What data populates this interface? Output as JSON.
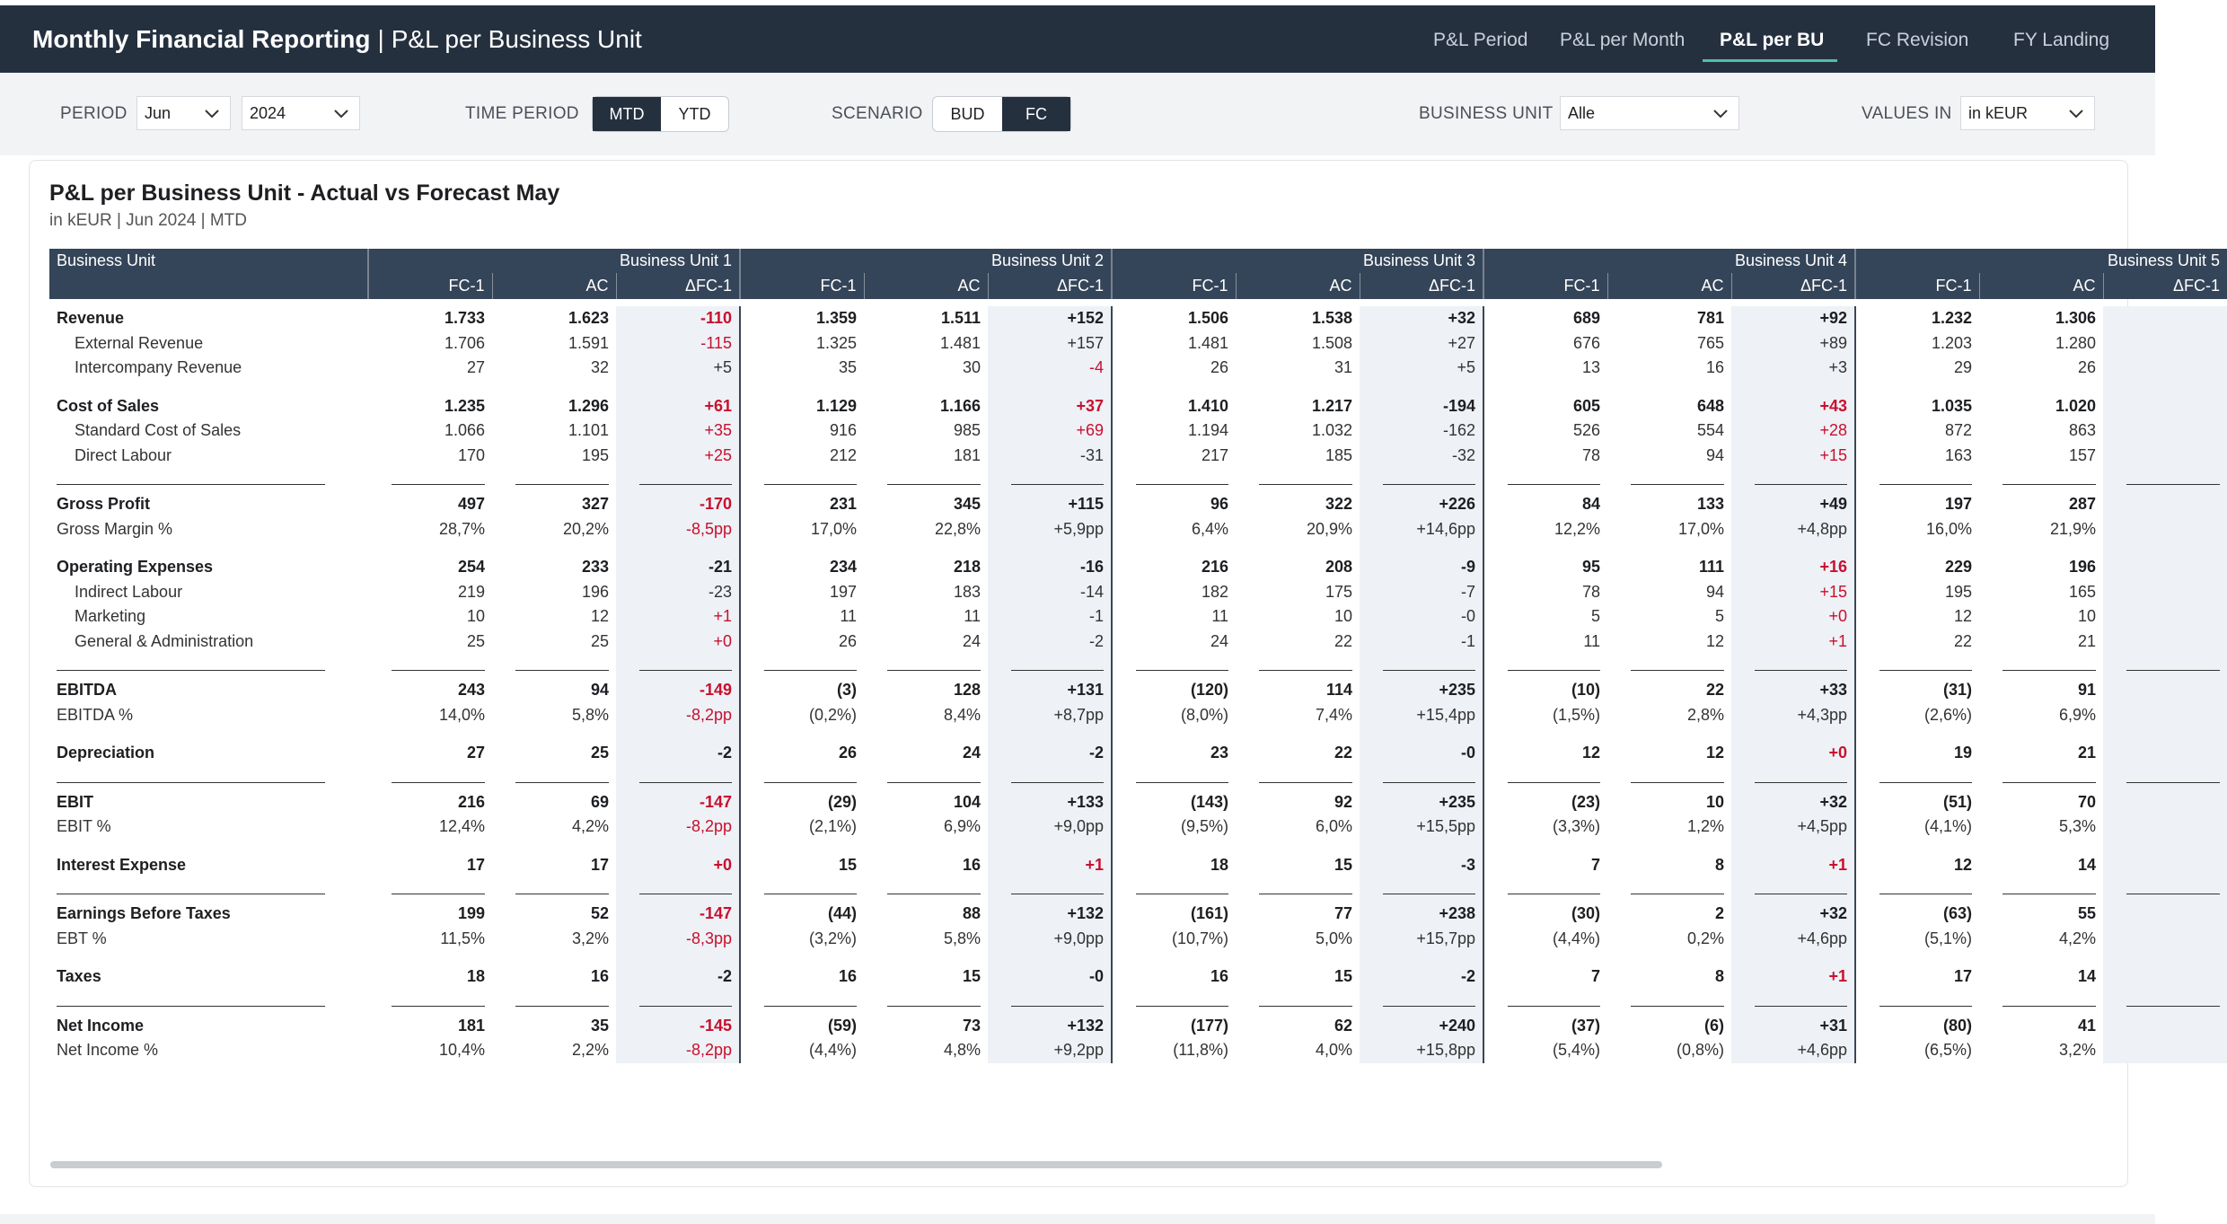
{
  "header": {
    "app_title": "Monthly Financial Reporting",
    "separator": "|",
    "page_title": "P&L per Business Unit",
    "nav": [
      {
        "label": "P&L Period",
        "active": false
      },
      {
        "label": "P&L per Month",
        "active": false
      },
      {
        "label": "P&L per BU",
        "active": true
      },
      {
        "label": "FC Revision",
        "active": false
      },
      {
        "label": "FY Landing",
        "active": false
      }
    ]
  },
  "filters": {
    "period_label": "PERIOD",
    "period_month": "Jun",
    "period_year": "2024",
    "time_period_label": "TIME PERIOD",
    "time_period_options": [
      "MTD",
      "YTD"
    ],
    "time_period_selected": "MTD",
    "scenario_label": "SCENARIO",
    "scenario_options": [
      "BUD",
      "FC"
    ],
    "scenario_selected": "FC",
    "business_unit_label": "BUSINESS UNIT",
    "business_unit_value": "Alle",
    "values_in_label": "VALUES IN",
    "values_in_value": "in kEUR"
  },
  "card": {
    "title": "P&L per Business Unit - Actual vs Forecast May",
    "subtitle": "in kEUR | Jun 2024 | MTD"
  },
  "table": {
    "label_header": "Business Unit",
    "units": [
      "Business Unit 1",
      "Business Unit 2",
      "Business Unit 3",
      "Business Unit 4",
      "Business Unit 5"
    ],
    "subheaders": [
      "FC-1",
      "AC",
      "ΔFC-1"
    ],
    "rows": [
      {
        "label": "Revenue",
        "type": "bold",
        "cells": [
          [
            "1.733",
            "1.623",
            "-110"
          ],
          [
            "1.359",
            "1.511",
            "+152"
          ],
          [
            "1.506",
            "1.538",
            "+32"
          ],
          [
            "689",
            "781",
            "+92"
          ],
          [
            "1.232",
            "1.306",
            ""
          ]
        ],
        "neg": [
          true,
          false,
          false,
          false,
          false
        ]
      },
      {
        "label": "External Revenue",
        "type": "indent",
        "cells": [
          [
            "1.706",
            "1.591",
            "-115"
          ],
          [
            "1.325",
            "1.481",
            "+157"
          ],
          [
            "1.481",
            "1.508",
            "+27"
          ],
          [
            "676",
            "765",
            "+89"
          ],
          [
            "1.203",
            "1.280",
            ""
          ]
        ],
        "neg": [
          true,
          false,
          false,
          false,
          false
        ]
      },
      {
        "label": "Intercompany Revenue",
        "type": "indent",
        "cells": [
          [
            "27",
            "32",
            "+5"
          ],
          [
            "35",
            "30",
            "-4"
          ],
          [
            "26",
            "31",
            "+5"
          ],
          [
            "13",
            "16",
            "+3"
          ],
          [
            "29",
            "26",
            ""
          ]
        ],
        "neg": [
          false,
          true,
          false,
          false,
          false
        ]
      },
      {
        "type": "spacer"
      },
      {
        "label": "Cost of Sales",
        "type": "bold",
        "cells": [
          [
            "1.235",
            "1.296",
            "+61"
          ],
          [
            "1.129",
            "1.166",
            "+37"
          ],
          [
            "1.410",
            "1.217",
            "-194"
          ],
          [
            "605",
            "648",
            "+43"
          ],
          [
            "1.035",
            "1.020",
            ""
          ]
        ],
        "neg": [
          true,
          true,
          false,
          true,
          false
        ]
      },
      {
        "label": "Standard Cost of Sales",
        "type": "indent",
        "cells": [
          [
            "1.066",
            "1.101",
            "+35"
          ],
          [
            "916",
            "985",
            "+69"
          ],
          [
            "1.194",
            "1.032",
            "-162"
          ],
          [
            "526",
            "554",
            "+28"
          ],
          [
            "872",
            "863",
            ""
          ]
        ],
        "neg": [
          true,
          true,
          false,
          true,
          false
        ]
      },
      {
        "label": "Direct Labour",
        "type": "indent",
        "cells": [
          [
            "170",
            "195",
            "+25"
          ],
          [
            "212",
            "181",
            "-31"
          ],
          [
            "217",
            "185",
            "-32"
          ],
          [
            "78",
            "94",
            "+15"
          ],
          [
            "163",
            "157",
            ""
          ]
        ],
        "neg": [
          true,
          false,
          false,
          true,
          false
        ]
      },
      {
        "type": "underline"
      },
      {
        "label": "Gross Profit",
        "type": "bold",
        "cells": [
          [
            "497",
            "327",
            "-170"
          ],
          [
            "231",
            "345",
            "+115"
          ],
          [
            "96",
            "322",
            "+226"
          ],
          [
            "84",
            "133",
            "+49"
          ],
          [
            "197",
            "287",
            ""
          ]
        ],
        "neg": [
          true,
          false,
          false,
          false,
          false
        ]
      },
      {
        "label": "Gross Margin %",
        "type": "plain",
        "cells": [
          [
            "28,7%",
            "20,2%",
            "-8,5pp"
          ],
          [
            "17,0%",
            "22,8%",
            "+5,9pp"
          ],
          [
            "6,4%",
            "20,9%",
            "+14,6pp"
          ],
          [
            "12,2%",
            "17,0%",
            "+4,8pp"
          ],
          [
            "16,0%",
            "21,9%",
            ""
          ]
        ],
        "neg": [
          true,
          false,
          false,
          false,
          false
        ]
      },
      {
        "type": "spacer"
      },
      {
        "label": "Operating Expenses",
        "type": "bold",
        "cells": [
          [
            "254",
            "233",
            "-21"
          ],
          [
            "234",
            "218",
            "-16"
          ],
          [
            "216",
            "208",
            "-9"
          ],
          [
            "95",
            "111",
            "+16"
          ],
          [
            "229",
            "196",
            ""
          ]
        ],
        "neg": [
          false,
          false,
          false,
          true,
          false
        ]
      },
      {
        "label": "Indirect Labour",
        "type": "indent",
        "cells": [
          [
            "219",
            "196",
            "-23"
          ],
          [
            "197",
            "183",
            "-14"
          ],
          [
            "182",
            "175",
            "-7"
          ],
          [
            "78",
            "94",
            "+15"
          ],
          [
            "195",
            "165",
            ""
          ]
        ],
        "neg": [
          false,
          false,
          false,
          true,
          false
        ]
      },
      {
        "label": "Marketing",
        "type": "indent",
        "cells": [
          [
            "10",
            "12",
            "+1"
          ],
          [
            "11",
            "11",
            "-1"
          ],
          [
            "11",
            "10",
            "-0"
          ],
          [
            "5",
            "5",
            "+0"
          ],
          [
            "12",
            "10",
            ""
          ]
        ],
        "neg": [
          true,
          false,
          false,
          true,
          false
        ]
      },
      {
        "label": "General & Administration",
        "type": "indent",
        "cells": [
          [
            "25",
            "25",
            "+0"
          ],
          [
            "26",
            "24",
            "-2"
          ],
          [
            "24",
            "22",
            "-1"
          ],
          [
            "11",
            "12",
            "+1"
          ],
          [
            "22",
            "21",
            ""
          ]
        ],
        "neg": [
          true,
          false,
          false,
          true,
          false
        ]
      },
      {
        "type": "underline"
      },
      {
        "label": "EBITDA",
        "type": "bold",
        "cells": [
          [
            "243",
            "94",
            "-149"
          ],
          [
            "(3)",
            "128",
            "+131"
          ],
          [
            "(120)",
            "114",
            "+235"
          ],
          [
            "(10)",
            "22",
            "+33"
          ],
          [
            "(31)",
            "91",
            ""
          ]
        ],
        "neg": [
          true,
          false,
          false,
          false,
          false
        ]
      },
      {
        "label": "EBITDA %",
        "type": "plain",
        "cells": [
          [
            "14,0%",
            "5,8%",
            "-8,2pp"
          ],
          [
            "(0,2%)",
            "8,4%",
            "+8,7pp"
          ],
          [
            "(8,0%)",
            "7,4%",
            "+15,4pp"
          ],
          [
            "(1,5%)",
            "2,8%",
            "+4,3pp"
          ],
          [
            "(2,6%)",
            "6,9%",
            ""
          ]
        ],
        "neg": [
          true,
          false,
          false,
          false,
          false
        ]
      },
      {
        "type": "spacer"
      },
      {
        "label": "Depreciation",
        "type": "bold",
        "cells": [
          [
            "27",
            "25",
            "-2"
          ],
          [
            "26",
            "24",
            "-2"
          ],
          [
            "23",
            "22",
            "-0"
          ],
          [
            "12",
            "12",
            "+0"
          ],
          [
            "19",
            "21",
            ""
          ]
        ],
        "neg": [
          false,
          false,
          false,
          true,
          false
        ]
      },
      {
        "type": "underline"
      },
      {
        "label": "EBIT",
        "type": "bold",
        "cells": [
          [
            "216",
            "69",
            "-147"
          ],
          [
            "(29)",
            "104",
            "+133"
          ],
          [
            "(143)",
            "92",
            "+235"
          ],
          [
            "(23)",
            "10",
            "+32"
          ],
          [
            "(51)",
            "70",
            ""
          ]
        ],
        "neg": [
          true,
          false,
          false,
          false,
          false
        ]
      },
      {
        "label": "EBIT %",
        "type": "plain",
        "cells": [
          [
            "12,4%",
            "4,2%",
            "-8,2pp"
          ],
          [
            "(2,1%)",
            "6,9%",
            "+9,0pp"
          ],
          [
            "(9,5%)",
            "6,0%",
            "+15,5pp"
          ],
          [
            "(3,3%)",
            "1,2%",
            "+4,5pp"
          ],
          [
            "(4,1%)",
            "5,3%",
            ""
          ]
        ],
        "neg": [
          true,
          false,
          false,
          false,
          false
        ]
      },
      {
        "type": "spacer"
      },
      {
        "label": "Interest Expense",
        "type": "bold",
        "cells": [
          [
            "17",
            "17",
            "+0"
          ],
          [
            "15",
            "16",
            "+1"
          ],
          [
            "18",
            "15",
            "-3"
          ],
          [
            "7",
            "8",
            "+1"
          ],
          [
            "12",
            "14",
            ""
          ]
        ],
        "neg": [
          true,
          true,
          false,
          true,
          false
        ]
      },
      {
        "type": "underline"
      },
      {
        "label": "Earnings Before Taxes",
        "type": "bold",
        "cells": [
          [
            "199",
            "52",
            "-147"
          ],
          [
            "(44)",
            "88",
            "+132"
          ],
          [
            "(161)",
            "77",
            "+238"
          ],
          [
            "(30)",
            "2",
            "+32"
          ],
          [
            "(63)",
            "55",
            ""
          ]
        ],
        "neg": [
          true,
          false,
          false,
          false,
          false
        ]
      },
      {
        "label": "EBT %",
        "type": "plain",
        "cells": [
          [
            "11,5%",
            "3,2%",
            "-8,3pp"
          ],
          [
            "(3,2%)",
            "5,8%",
            "+9,0pp"
          ],
          [
            "(10,7%)",
            "5,0%",
            "+15,7pp"
          ],
          [
            "(4,4%)",
            "0,2%",
            "+4,6pp"
          ],
          [
            "(5,1%)",
            "4,2%",
            ""
          ]
        ],
        "neg": [
          true,
          false,
          false,
          false,
          false
        ]
      },
      {
        "type": "spacer"
      },
      {
        "label": "Taxes",
        "type": "bold",
        "cells": [
          [
            "18",
            "16",
            "-2"
          ],
          [
            "16",
            "15",
            "-0"
          ],
          [
            "16",
            "15",
            "-2"
          ],
          [
            "7",
            "8",
            "+1"
          ],
          [
            "17",
            "14",
            ""
          ]
        ],
        "neg": [
          false,
          false,
          false,
          true,
          false
        ]
      },
      {
        "type": "underline"
      },
      {
        "label": "Net Income",
        "type": "bold",
        "cells": [
          [
            "181",
            "35",
            "-145"
          ],
          [
            "(59)",
            "73",
            "+132"
          ],
          [
            "(177)",
            "62",
            "+240"
          ],
          [
            "(37)",
            "(6)",
            "+31"
          ],
          [
            "(80)",
            "41",
            ""
          ]
        ],
        "neg": [
          true,
          false,
          false,
          false,
          false
        ]
      },
      {
        "label": "Net Income %",
        "type": "plain",
        "cells": [
          [
            "10,4%",
            "2,2%",
            "-8,2pp"
          ],
          [
            "(4,4%)",
            "4,8%",
            "+9,2pp"
          ],
          [
            "(11,8%)",
            "4,0%",
            "+15,8pp"
          ],
          [
            "(5,4%)",
            "(0,8%)",
            "+4,6pp"
          ],
          [
            "(6,5%)",
            "3,2%",
            ""
          ]
        ],
        "neg": [
          true,
          false,
          false,
          false,
          false
        ]
      }
    ]
  },
  "colors": {
    "header_bg": "#25303f",
    "table_header_bg": "#354559",
    "negative": "#c8102e",
    "accent": "#4fbfa8",
    "delta_column_bg": "#eef1f6"
  }
}
